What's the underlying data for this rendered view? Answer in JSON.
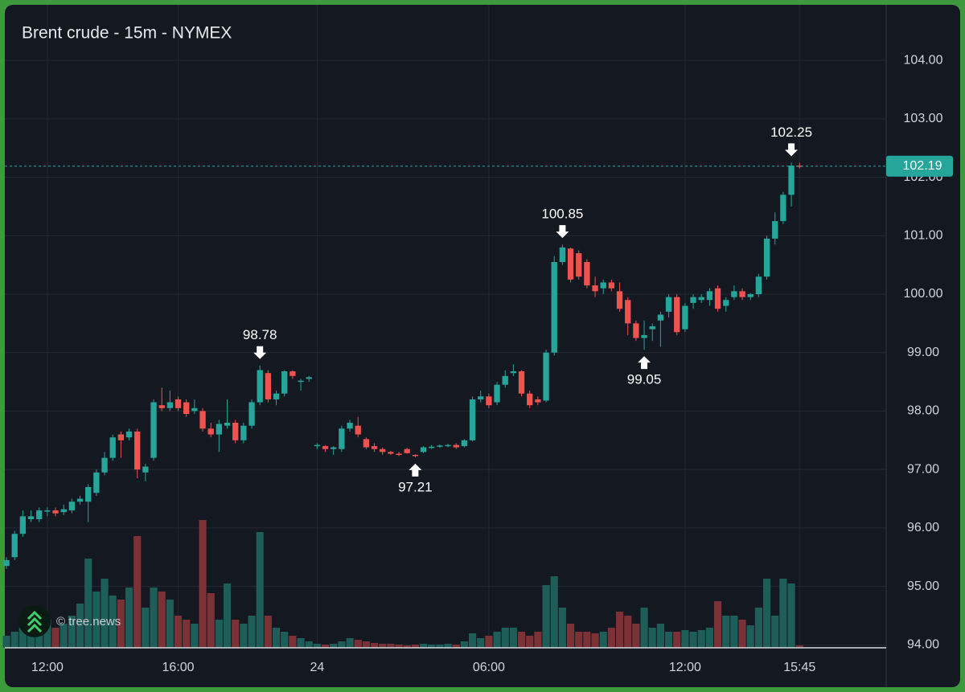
{
  "chart_data": {
    "type": "candlestick",
    "title": "Brent crude - 15m - NYMEX",
    "watermark": "© tree.news",
    "open": [
      95.35,
      95.5,
      95.9,
      96.15,
      96.15,
      96.28,
      96.3,
      96.27,
      96.3,
      96.45,
      96.45,
      96.6,
      96.95,
      97.2,
      97.6,
      97.55,
      97.65,
      96.95,
      97.2,
      98.1,
      98.05,
      98.2,
      98.15,
      98.0,
      98.0,
      97.7,
      97.6,
      97.75,
      97.8,
      97.5,
      97.75,
      98.15,
      98.65,
      98.2,
      98.3,
      98.68,
      98.5,
      98.55,
      97.4,
      97.4,
      97.35,
      97.35,
      97.7,
      97.75,
      97.52,
      97.4,
      97.35,
      97.3,
      97.27,
      97.35,
      97.25,
      97.3,
      97.38,
      97.4,
      97.4,
      97.42,
      97.4,
      97.5,
      98.2,
      98.25,
      98.15,
      98.45,
      98.65,
      98.68,
      98.3,
      98.2,
      98.18,
      99.0,
      100.55,
      100.78,
      100.7,
      100.55,
      100.15,
      100.1,
      100.2,
      100.05,
      99.9,
      99.5,
      99.25,
      99.4,
      99.55,
      99.7,
      99.95,
      99.4,
      99.85,
      99.9,
      99.9,
      100.1,
      99.8,
      99.95,
      100.05,
      99.95,
      100.0,
      100.3,
      100.95,
      101.25,
      101.7,
      102.2
    ],
    "high": [
      95.5,
      95.95,
      96.3,
      96.3,
      96.35,
      96.35,
      96.35,
      96.4,
      96.5,
      96.55,
      96.75,
      97.0,
      97.3,
      97.6,
      97.65,
      97.7,
      97.7,
      97.1,
      98.2,
      98.4,
      98.35,
      98.25,
      98.2,
      98.2,
      98.05,
      97.8,
      97.85,
      98.2,
      97.85,
      97.8,
      98.2,
      98.78,
      98.7,
      98.35,
      98.7,
      98.7,
      98.55,
      98.6,
      97.45,
      97.42,
      97.4,
      97.75,
      97.85,
      97.9,
      97.55,
      97.45,
      97.38,
      97.32,
      97.3,
      97.37,
      97.26,
      97.4,
      97.42,
      97.43,
      97.44,
      97.45,
      97.52,
      98.25,
      98.35,
      98.3,
      98.5,
      98.7,
      98.8,
      98.7,
      98.35,
      98.25,
      99.05,
      100.65,
      100.85,
      100.8,
      100.75,
      100.6,
      100.3,
      100.25,
      100.25,
      100.2,
      99.95,
      99.55,
      99.55,
      99.5,
      99.7,
      100.0,
      100.0,
      99.85,
      100.0,
      100.0,
      100.1,
      100.15,
      99.95,
      100.15,
      100.1,
      100.02,
      100.35,
      101.0,
      101.4,
      101.75,
      102.25,
      102.25
    ],
    "low": [
      95.3,
      95.45,
      95.85,
      96.1,
      96.1,
      96.2,
      96.2,
      96.22,
      96.25,
      96.4,
      96.1,
      96.55,
      96.9,
      97.15,
      97.2,
      97.5,
      96.85,
      96.8,
      97.15,
      98.0,
      98.0,
      98.0,
      97.9,
      97.95,
      97.65,
      97.55,
      97.3,
      97.7,
      97.45,
      97.45,
      97.7,
      98.1,
      98.15,
      98.1,
      98.25,
      98.55,
      98.35,
      98.5,
      97.35,
      97.3,
      97.25,
      97.3,
      97.65,
      97.55,
      97.35,
      97.3,
      97.25,
      97.25,
      97.23,
      97.27,
      97.21,
      97.28,
      97.35,
      97.37,
      97.38,
      97.35,
      97.38,
      97.48,
      98.15,
      98.05,
      98.1,
      98.4,
      98.6,
      98.25,
      98.05,
      98.1,
      98.15,
      98.95,
      100.5,
      100.2,
      100.25,
      100.1,
      99.95,
      100.0,
      100.05,
      99.7,
      99.3,
      99.2,
      99.05,
      99.2,
      99.1,
      99.6,
      99.3,
      99.35,
      99.75,
      99.85,
      99.8,
      99.7,
      99.7,
      99.9,
      99.9,
      99.9,
      99.95,
      100.25,
      100.85,
      101.2,
      101.5,
      102.15
    ],
    "close": [
      95.45,
      95.9,
      96.2,
      96.2,
      96.3,
      96.3,
      96.25,
      96.32,
      96.45,
      96.5,
      96.7,
      96.95,
      97.2,
      97.55,
      97.5,
      97.65,
      97.0,
      97.05,
      98.15,
      98.05,
      98.15,
      98.05,
      97.95,
      98.05,
      97.7,
      97.6,
      97.78,
      97.8,
      97.5,
      97.75,
      98.15,
      98.7,
      98.2,
      98.3,
      98.68,
      98.6,
      98.52,
      98.58,
      97.42,
      97.35,
      97.38,
      97.7,
      97.8,
      97.6,
      97.38,
      97.35,
      97.3,
      97.27,
      97.25,
      97.28,
      97.23,
      97.38,
      97.39,
      97.41,
      97.42,
      97.38,
      97.5,
      98.2,
      98.25,
      98.1,
      98.45,
      98.6,
      98.68,
      98.3,
      98.1,
      98.15,
      99.0,
      100.55,
      100.8,
      100.25,
      100.3,
      100.15,
      100.05,
      100.2,
      100.1,
      99.75,
      99.5,
      99.25,
      99.3,
      99.45,
      99.65,
      99.95,
      99.35,
      99.8,
      99.95,
      99.95,
      100.05,
      99.75,
      99.9,
      100.05,
      99.95,
      100.0,
      100.3,
      100.95,
      101.25,
      101.7,
      102.2,
      102.19
    ],
    "volume": [
      15,
      20,
      25,
      22,
      30,
      35,
      25,
      30,
      40,
      55,
      111,
      70,
      86,
      65,
      60,
      75,
      139,
      50,
      75,
      70,
      60,
      40,
      35,
      30,
      159,
      68,
      35,
      80,
      35,
      30,
      40,
      144,
      40,
      25,
      20,
      15,
      12,
      8,
      5,
      4,
      5,
      8,
      12,
      10,
      8,
      6,
      5,
      5,
      4,
      3,
      4,
      5,
      4,
      4,
      5,
      4,
      8,
      18,
      12,
      15,
      20,
      25,
      25,
      20,
      15,
      20,
      78,
      89,
      50,
      30,
      20,
      20,
      18,
      20,
      25,
      45,
      40,
      30,
      50,
      25,
      30,
      20,
      20,
      22,
      20,
      22,
      25,
      58,
      40,
      40,
      35,
      28,
      50,
      86,
      40,
      86,
      80,
      3
    ],
    "volume_lim": [
      0,
      160
    ],
    "up_color": "#26a69a",
    "down_color": "#ef5350",
    "volume_up_color": "#1d5e58",
    "volume_down_color": "#7a3236",
    "xlim": [
      -0.2,
      107.6
    ],
    "xticks": [
      {
        "value": 5,
        "label": "12:00"
      },
      {
        "value": 21,
        "label": "16:00"
      },
      {
        "value": 38,
        "label": "24"
      },
      {
        "value": 59,
        "label": "06:00"
      },
      {
        "value": 83,
        "label": "12:00"
      },
      {
        "value": 97,
        "label": "15:45"
      }
    ],
    "ylim": [
      93.95,
      104.95
    ],
    "yticks": [
      {
        "value": 94,
        "label": "94.00"
      },
      {
        "value": 95,
        "label": "95.00"
      },
      {
        "value": 96,
        "label": "96.00"
      },
      {
        "value": 97,
        "label": "97.00"
      },
      {
        "value": 98,
        "label": "98.00"
      },
      {
        "value": 99,
        "label": "99.00"
      },
      {
        "value": 100,
        "label": "100.00"
      },
      {
        "value": 101,
        "label": "101.00"
      },
      {
        "value": 102,
        "label": "102.00"
      },
      {
        "value": 103,
        "label": "103.00"
      },
      {
        "value": 104,
        "label": "104.00"
      }
    ],
    "grid": true,
    "annotations": [
      {
        "value": 98.78,
        "x": 31,
        "side": "above"
      },
      {
        "value": 97.21,
        "x": 50,
        "side": "below"
      },
      {
        "value": 100.85,
        "x": 68,
        "side": "above"
      },
      {
        "value": 99.05,
        "x": 78,
        "side": "below"
      },
      {
        "value": 102.25,
        "x": 96,
        "side": "above"
      }
    ],
    "last_price": 102.19
  }
}
